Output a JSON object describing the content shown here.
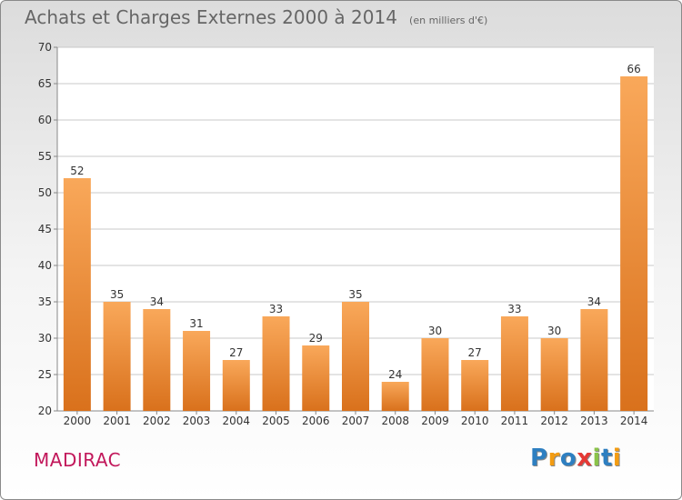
{
  "header": {
    "title": "Achats et Charges Externes 2000 à 2014",
    "unit": "(en milliers d'€)"
  },
  "footer": {
    "place": "MADIRAC",
    "logo_text": "Proxiti",
    "logo_letters": [
      {
        "ch": "P",
        "color": "#2e7fc1"
      },
      {
        "ch": "r",
        "color": "#f39c12"
      },
      {
        "ch": "o",
        "color": "#2e7fc1"
      },
      {
        "ch": "x",
        "color": "#e53935"
      },
      {
        "ch": "i",
        "color": "#8bc34a"
      },
      {
        "ch": "t",
        "color": "#2e7fc1"
      },
      {
        "ch": "i",
        "color": "#f39c12"
      }
    ]
  },
  "colors": {
    "bar_top": "#f9a85a",
    "bar_bottom": "#d9711c",
    "grid": "#c8c8c8",
    "axis_text": "#333333",
    "plot_bg": "#ffffff",
    "place": "#c2185b"
  },
  "chart_data": {
    "type": "bar",
    "title": "Achats et Charges Externes 2000 à 2014",
    "subtitle": "(en milliers d'€)",
    "xlabel": "",
    "ylabel": "",
    "categories": [
      "2000",
      "2001",
      "2002",
      "2003",
      "2004",
      "2005",
      "2006",
      "2007",
      "2008",
      "2009",
      "2010",
      "2011",
      "2012",
      "2013",
      "2014"
    ],
    "values": [
      52,
      35,
      34,
      31,
      27,
      33,
      29,
      35,
      24,
      30,
      27,
      33,
      30,
      34,
      66
    ],
    "ylim": [
      20,
      70
    ],
    "yticks": [
      20,
      25,
      30,
      35,
      40,
      45,
      50,
      55,
      60,
      65,
      70
    ],
    "grid": true,
    "legend": "none"
  }
}
